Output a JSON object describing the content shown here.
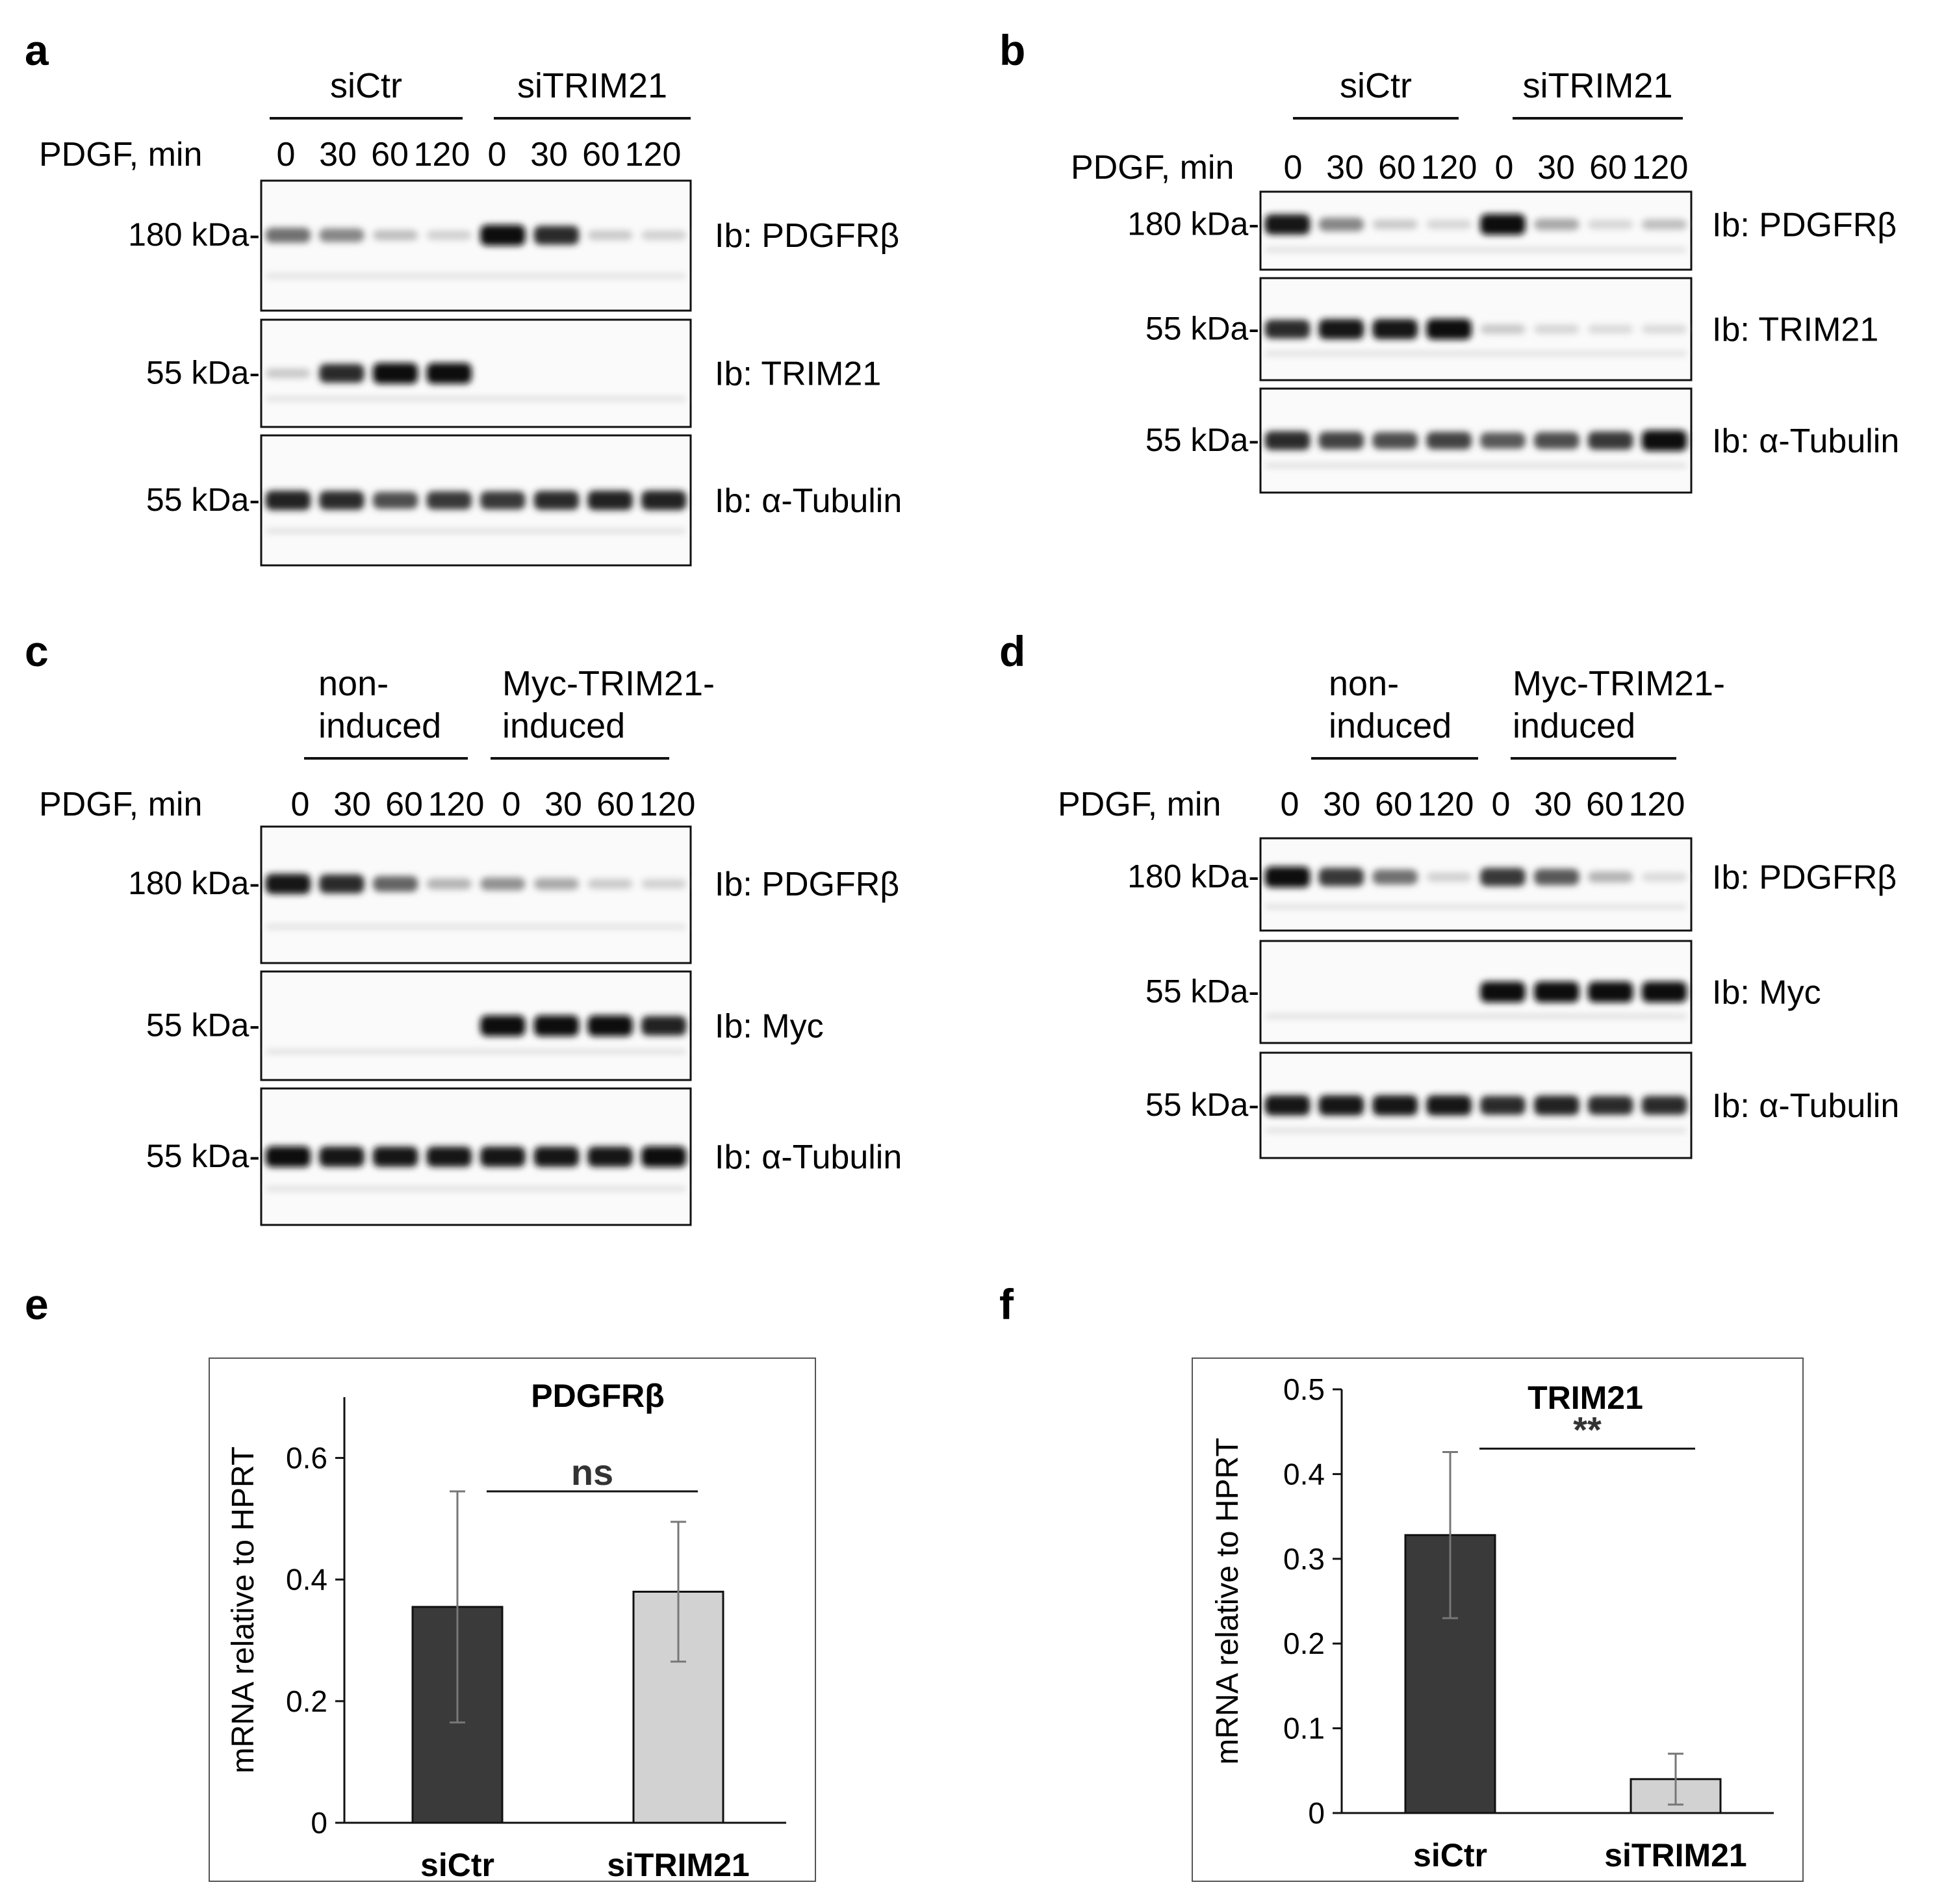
{
  "panels": [
    {
      "id": "a",
      "label": "a",
      "groups": [
        "siCtr",
        "siTRIM21"
      ],
      "group_label_lines": [
        [
          "siCtr"
        ],
        [
          "siTRIM21"
        ]
      ],
      "row_label": "PDGF, min",
      "lanes": [
        "0",
        "30",
        "60",
        "120",
        "0",
        "30",
        "60",
        "120"
      ],
      "blots": [
        {
          "marker": "180 kDa-",
          "antibody": "Ib: PDGFRβ",
          "intensity": [
            0.55,
            0.45,
            0.2,
            0.12,
            1.0,
            0.85,
            0.15,
            0.12
          ]
        },
        {
          "marker": "55 kDa-",
          "antibody": "Ib: TRIM21",
          "intensity": [
            0.15,
            0.85,
            1.0,
            1.0,
            0,
            0,
            0,
            0
          ]
        },
        {
          "marker": "55 kDa-",
          "antibody": "Ib: α-Tubulin",
          "intensity": [
            0.9,
            0.85,
            0.7,
            0.8,
            0.8,
            0.85,
            0.9,
            0.9
          ]
        }
      ]
    },
    {
      "id": "b",
      "label": "b",
      "groups": [
        "siCtr",
        "siTRIM21"
      ],
      "group_label_lines": [
        [
          "siCtr"
        ],
        [
          "siTRIM21"
        ]
      ],
      "row_label": "PDGF, min",
      "lanes": [
        "0",
        "30",
        "60",
        "120",
        "0",
        "30",
        "60",
        "120"
      ],
      "blots": [
        {
          "marker": "180 kDa-",
          "antibody": "Ib: PDGFRβ",
          "intensity": [
            0.95,
            0.45,
            0.15,
            0.1,
            1.0,
            0.3,
            0.1,
            0.2
          ]
        },
        {
          "marker": "55 kDa-",
          "antibody": "Ib: TRIM21",
          "intensity": [
            0.85,
            0.95,
            0.95,
            1.0,
            0.15,
            0.1,
            0.08,
            0.08
          ]
        },
        {
          "marker": "55 kDa-",
          "antibody": "Ib: α-Tubulin",
          "intensity": [
            0.85,
            0.75,
            0.7,
            0.75,
            0.65,
            0.7,
            0.8,
            1.0
          ]
        }
      ]
    },
    {
      "id": "c",
      "label": "c",
      "groups": [
        "non-induced",
        "Myc-TRIM21-induced"
      ],
      "group_label_lines": [
        [
          "non-",
          "induced"
        ],
        [
          "Myc-TRIM21-",
          "induced"
        ]
      ],
      "row_label": "PDGF, min",
      "lanes": [
        "0",
        "30",
        "60",
        "120",
        "0",
        "30",
        "60",
        "120"
      ],
      "blots": [
        {
          "marker": "180 kDa-",
          "antibody": "Ib: PDGFRβ",
          "intensity": [
            0.95,
            0.85,
            0.6,
            0.25,
            0.4,
            0.3,
            0.15,
            0.12
          ]
        },
        {
          "marker": "55 kDa-",
          "antibody": "Ib: Myc",
          "intensity": [
            0,
            0,
            0,
            0,
            1.0,
            1.0,
            1.0,
            0.9
          ]
        },
        {
          "marker": "55 kDa-",
          "antibody": "Ib: α-Tubulin",
          "intensity": [
            1.0,
            0.95,
            0.95,
            0.95,
            0.95,
            0.95,
            0.95,
            1.0
          ]
        }
      ]
    },
    {
      "id": "d",
      "label": "d",
      "groups": [
        "non-induced",
        "Myc-TRIM21-induced"
      ],
      "group_label_lines": [
        [
          "non-",
          "induced"
        ],
        [
          "Myc-TRIM21-",
          "induced"
        ]
      ],
      "row_label": "PDGF, min",
      "lanes": [
        "0",
        "30",
        "60",
        "120",
        "0",
        "30",
        "60",
        "120"
      ],
      "blots": [
        {
          "marker": "180 kDa-",
          "antibody": "Ib: PDGFRβ",
          "intensity": [
            1.0,
            0.8,
            0.55,
            0.12,
            0.8,
            0.65,
            0.25,
            0.08
          ]
        },
        {
          "marker": "55 kDa-",
          "antibody": "Ib: Myc",
          "intensity": [
            0,
            0,
            0,
            0,
            1.0,
            1.0,
            1.0,
            1.0
          ]
        },
        {
          "marker": "55 kDa-",
          "antibody": "Ib: α-Tubulin",
          "intensity": [
            0.95,
            0.95,
            0.95,
            0.95,
            0.85,
            0.9,
            0.85,
            0.85
          ]
        }
      ]
    }
  ],
  "chart_data": [
    {
      "panel": "e",
      "type": "bar",
      "title": "PDGFRβ",
      "ylabel": "mRNA relative to HPRT",
      "xlabel": "",
      "categories": [
        "siCtr",
        "siTRIM21"
      ],
      "values": [
        0.355,
        0.38
      ],
      "error": [
        0.19,
        0.115
      ],
      "ylim": [
        0,
        0.7
      ],
      "yticks": [
        0,
        0.2,
        0.4,
        0.6
      ],
      "ytick_labels": [
        "0",
        "0.2",
        "0.4",
        "0.6"
      ],
      "bar_colors": [
        "#3a3a3a",
        "#d2d2d2"
      ],
      "significance": "ns",
      "grid": false
    },
    {
      "panel": "f",
      "type": "bar",
      "title": "TRIM21",
      "ylabel": "mRNA relative to HPRT",
      "xlabel": "",
      "categories": [
        "siCtr",
        "siTRIM21"
      ],
      "values": [
        0.328,
        0.04
      ],
      "error": [
        0.098,
        0.03
      ],
      "ylim": [
        0,
        0.5
      ],
      "yticks": [
        0,
        0.1,
        0.2,
        0.3,
        0.4,
        0.5
      ],
      "ytick_labels": [
        "0",
        "0.1",
        "0.2",
        "0.3",
        "0.4",
        "0.5"
      ],
      "bar_colors": [
        "#3a3a3a",
        "#d2d2d2"
      ],
      "significance": "**",
      "grid": false
    }
  ]
}
